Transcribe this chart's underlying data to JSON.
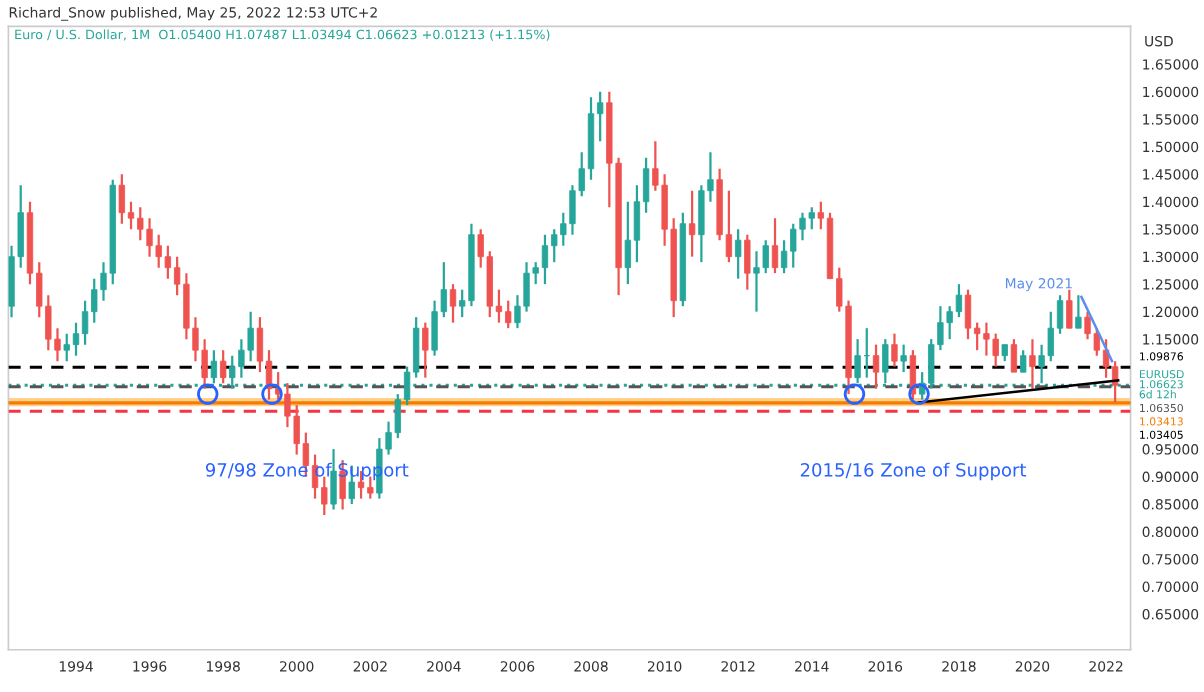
{
  "chart_data": {
    "type": "candlestick",
    "annotations": [
      "Richard_Snow published, May 25, 2022 12:53 UTC+2",
      "Euro / U.S. Dollar, 1M  O1.05400 H1.07487 L1.03494 C1.06623 +0.01213 (+1.15%)",
      "97/98 Zone of Support",
      "2015/16 Zone of Support",
      "1.03405",
      {
        "text": "May 2021",
        "x": "2021-05",
        "y": 1.227
      }
    ],
    "x": [
      "1992-04",
      "1992-07",
      "1992-10",
      "1993-01",
      "1993-04",
      "1993-07",
      "1993-10",
      "1994-01",
      "1994-04",
      "1994-07",
      "1994-10",
      "1995-01",
      "1995-04",
      "1995-07",
      "1995-10",
      "1996-01",
      "1996-04",
      "1996-07",
      "1996-10",
      "1997-01",
      "1997-04",
      "1997-07",
      "1997-10",
      "1998-01",
      "1998-04",
      "1998-07",
      "1998-10",
      "1999-01",
      "1999-04",
      "1999-07",
      "1999-10",
      "2000-01",
      "2000-04",
      "2000-07",
      "2000-10",
      "2001-01",
      "2001-04",
      "2001-07",
      "2001-10",
      "2002-01",
      "2002-04",
      "2002-07",
      "2002-10",
      "2003-01",
      "2003-04",
      "2003-07",
      "2003-10",
      "2004-01",
      "2004-04",
      "2004-07",
      "2004-10",
      "2005-01",
      "2005-04",
      "2005-07",
      "2005-10",
      "2006-01",
      "2006-04",
      "2006-07",
      "2006-10",
      "2007-01",
      "2007-04",
      "2007-07",
      "2007-10",
      "2008-01",
      "2008-04",
      "2008-07",
      "2008-10",
      "2009-01",
      "2009-04",
      "2009-07",
      "2009-10",
      "2010-01",
      "2010-04",
      "2010-07",
      "2010-10",
      "2011-01",
      "2011-04",
      "2011-07",
      "2011-10",
      "2012-01",
      "2012-04",
      "2012-07",
      "2012-10",
      "2013-01",
      "2013-04",
      "2013-07",
      "2013-10",
      "2014-01",
      "2014-04",
      "2014-07",
      "2014-10",
      "2015-01",
      "2015-04",
      "2015-07",
      "2015-10",
      "2016-01",
      "2016-04",
      "2016-07",
      "2016-10",
      "2017-01",
      "2017-04",
      "2017-07",
      "2017-10",
      "2018-01",
      "2018-04",
      "2018-07",
      "2018-10",
      "2019-01",
      "2019-04",
      "2019-07",
      "2019-10",
      "2020-01",
      "2020-04",
      "2020-07",
      "2020-10",
      "2021-01",
      "2021-04",
      "2021-07",
      "2021-10",
      "2022-01",
      "2022-04"
    ],
    "ohlc": [
      [
        1.21,
        1.32,
        1.19,
        1.3
      ],
      [
        1.3,
        1.43,
        1.28,
        1.38
      ],
      [
        1.38,
        1.4,
        1.25,
        1.27
      ],
      [
        1.27,
        1.29,
        1.19,
        1.21
      ],
      [
        1.21,
        1.23,
        1.13,
        1.15
      ],
      [
        1.15,
        1.17,
        1.11,
        1.13
      ],
      [
        1.13,
        1.16,
        1.11,
        1.14
      ],
      [
        1.14,
        1.18,
        1.12,
        1.16
      ],
      [
        1.16,
        1.22,
        1.14,
        1.2
      ],
      [
        1.2,
        1.26,
        1.18,
        1.24
      ],
      [
        1.24,
        1.29,
        1.22,
        1.27
      ],
      [
        1.27,
        1.44,
        1.25,
        1.43
      ],
      [
        1.43,
        1.45,
        1.36,
        1.38
      ],
      [
        1.38,
        1.4,
        1.35,
        1.37
      ],
      [
        1.37,
        1.39,
        1.33,
        1.35
      ],
      [
        1.35,
        1.37,
        1.3,
        1.32
      ],
      [
        1.32,
        1.34,
        1.28,
        1.3
      ],
      [
        1.3,
        1.32,
        1.26,
        1.28
      ],
      [
        1.28,
        1.3,
        1.23,
        1.25
      ],
      [
        1.25,
        1.27,
        1.15,
        1.17
      ],
      [
        1.17,
        1.19,
        1.11,
        1.13
      ],
      [
        1.13,
        1.15,
        1.06,
        1.08
      ],
      [
        1.08,
        1.13,
        1.07,
        1.11
      ],
      [
        1.11,
        1.13,
        1.07,
        1.08
      ],
      [
        1.08,
        1.12,
        1.06,
        1.1
      ],
      [
        1.1,
        1.15,
        1.08,
        1.13
      ],
      [
        1.13,
        1.2,
        1.11,
        1.17
      ],
      [
        1.17,
        1.19,
        1.09,
        1.11
      ],
      [
        1.11,
        1.13,
        1.04,
        1.06
      ],
      [
        1.06,
        1.09,
        1.04,
        1.05
      ],
      [
        1.05,
        1.07,
        0.99,
        1.01
      ],
      [
        1.01,
        1.03,
        0.94,
        0.96
      ],
      [
        0.96,
        0.98,
        0.9,
        0.92
      ],
      [
        0.92,
        0.94,
        0.86,
        0.88
      ],
      [
        0.88,
        0.9,
        0.83,
        0.85
      ],
      [
        0.85,
        0.95,
        0.84,
        0.91
      ],
      [
        0.91,
        0.93,
        0.84,
        0.86
      ],
      [
        0.86,
        0.92,
        0.85,
        0.89
      ],
      [
        0.89,
        0.91,
        0.86,
        0.88
      ],
      [
        0.88,
        0.9,
        0.86,
        0.87
      ],
      [
        0.87,
        0.97,
        0.86,
        0.95
      ],
      [
        0.95,
        1.0,
        0.94,
        0.98
      ],
      [
        0.98,
        1.05,
        0.97,
        1.04
      ],
      [
        1.04,
        1.1,
        1.03,
        1.09
      ],
      [
        1.09,
        1.19,
        1.08,
        1.17
      ],
      [
        1.17,
        1.18,
        1.08,
        1.13
      ],
      [
        1.13,
        1.22,
        1.12,
        1.2
      ],
      [
        1.2,
        1.29,
        1.19,
        1.24
      ],
      [
        1.24,
        1.25,
        1.18,
        1.21
      ],
      [
        1.21,
        1.24,
        1.19,
        1.22
      ],
      [
        1.22,
        1.36,
        1.21,
        1.34
      ],
      [
        1.34,
        1.35,
        1.28,
        1.3
      ],
      [
        1.3,
        1.31,
        1.19,
        1.21
      ],
      [
        1.21,
        1.24,
        1.18,
        1.2
      ],
      [
        1.2,
        1.22,
        1.17,
        1.18
      ],
      [
        1.18,
        1.23,
        1.17,
        1.21
      ],
      [
        1.21,
        1.29,
        1.2,
        1.27
      ],
      [
        1.27,
        1.29,
        1.25,
        1.28
      ],
      [
        1.28,
        1.34,
        1.25,
        1.32
      ],
      [
        1.32,
        1.35,
        1.29,
        1.34
      ],
      [
        1.34,
        1.38,
        1.32,
        1.36
      ],
      [
        1.36,
        1.43,
        1.34,
        1.42
      ],
      [
        1.42,
        1.49,
        1.41,
        1.46
      ],
      [
        1.46,
        1.59,
        1.44,
        1.56
      ],
      [
        1.56,
        1.6,
        1.51,
        1.58
      ],
      [
        1.58,
        1.6,
        1.39,
        1.47
      ],
      [
        1.47,
        1.48,
        1.23,
        1.28
      ],
      [
        1.28,
        1.4,
        1.25,
        1.33
      ],
      [
        1.33,
        1.43,
        1.29,
        1.4
      ],
      [
        1.4,
        1.48,
        1.38,
        1.46
      ],
      [
        1.46,
        1.51,
        1.42,
        1.43
      ],
      [
        1.43,
        1.45,
        1.32,
        1.35
      ],
      [
        1.35,
        1.37,
        1.19,
        1.22
      ],
      [
        1.22,
        1.38,
        1.21,
        1.36
      ],
      [
        1.36,
        1.42,
        1.3,
        1.34
      ],
      [
        1.34,
        1.43,
        1.29,
        1.42
      ],
      [
        1.42,
        1.49,
        1.4,
        1.44
      ],
      [
        1.44,
        1.46,
        1.33,
        1.34
      ],
      [
        1.34,
        1.42,
        1.29,
        1.3
      ],
      [
        1.3,
        1.35,
        1.26,
        1.33
      ],
      [
        1.33,
        1.34,
        1.24,
        1.27
      ],
      [
        1.27,
        1.31,
        1.2,
        1.28
      ],
      [
        1.28,
        1.33,
        1.27,
        1.32
      ],
      [
        1.32,
        1.37,
        1.27,
        1.28
      ],
      [
        1.28,
        1.33,
        1.27,
        1.31
      ],
      [
        1.31,
        1.36,
        1.28,
        1.35
      ],
      [
        1.35,
        1.38,
        1.33,
        1.37
      ],
      [
        1.37,
        1.39,
        1.35,
        1.38
      ],
      [
        1.38,
        1.4,
        1.35,
        1.37
      ],
      [
        1.37,
        1.38,
        1.26,
        1.26
      ],
      [
        1.26,
        1.28,
        1.2,
        1.21
      ],
      [
        1.21,
        1.22,
        1.05,
        1.08
      ],
      [
        1.08,
        1.15,
        1.07,
        1.12
      ],
      [
        1.12,
        1.17,
        1.08,
        1.12
      ],
      [
        1.12,
        1.14,
        1.06,
        1.09
      ],
      [
        1.09,
        1.15,
        1.07,
        1.14
      ],
      [
        1.14,
        1.16,
        1.1,
        1.11
      ],
      [
        1.11,
        1.14,
        1.09,
        1.12
      ],
      [
        1.12,
        1.13,
        1.04,
        1.05
      ],
      [
        1.05,
        1.09,
        1.04,
        1.07
      ],
      [
        1.07,
        1.15,
        1.06,
        1.14
      ],
      [
        1.14,
        1.21,
        1.13,
        1.18
      ],
      [
        1.18,
        1.21,
        1.15,
        1.2
      ],
      [
        1.2,
        1.25,
        1.19,
        1.23
      ],
      [
        1.23,
        1.24,
        1.15,
        1.17
      ],
      [
        1.17,
        1.18,
        1.13,
        1.16
      ],
      [
        1.16,
        1.18,
        1.12,
        1.15
      ],
      [
        1.15,
        1.16,
        1.1,
        1.12
      ],
      [
        1.12,
        1.14,
        1.11,
        1.14
      ],
      [
        1.14,
        1.15,
        1.09,
        1.09
      ],
      [
        1.09,
        1.13,
        1.09,
        1.12
      ],
      [
        1.12,
        1.15,
        1.06,
        1.1
      ],
      [
        1.1,
        1.14,
        1.07,
        1.12
      ],
      [
        1.12,
        1.2,
        1.11,
        1.17
      ],
      [
        1.17,
        1.23,
        1.16,
        1.22
      ],
      [
        1.22,
        1.24,
        1.17,
        1.17
      ],
      [
        1.17,
        1.23,
        1.17,
        1.19
      ],
      [
        1.19,
        1.2,
        1.15,
        1.16
      ],
      [
        1.16,
        1.17,
        1.12,
        1.13
      ],
      [
        1.13,
        1.15,
        1.08,
        1.1
      ],
      [
        1.1,
        1.11,
        1.035,
        1.066
      ]
    ],
    "colors": [
      "#26a69a",
      "#26a69a",
      "#ef5350",
      "#ef5350",
      "#ef5350",
      "#ef5350",
      "#26a69a",
      "#26a69a",
      "#26a69a",
      "#26a69a",
      "#26a69a",
      "#26a69a",
      "#ef5350",
      "#ef5350",
      "#ef5350",
      "#ef5350",
      "#ef5350",
      "#ef5350",
      "#ef5350",
      "#ef5350",
      "#ef5350",
      "#ef5350",
      "#26a69a",
      "#ef5350",
      "#26a69a",
      "#26a69a",
      "#26a69a",
      "#ef5350",
      "#ef5350",
      "#ef5350",
      "#ef5350",
      "#ef5350",
      "#ef5350",
      "#ef5350",
      "#ef5350",
      "#26a69a",
      "#ef5350",
      "#26a69a",
      "#ef5350",
      "#ef5350",
      "#26a69a",
      "#26a69a",
      "#26a69a",
      "#26a69a",
      "#26a69a",
      "#ef5350",
      "#26a69a",
      "#26a69a",
      "#ef5350",
      "#26a69a",
      "#26a69a",
      "#ef5350",
      "#ef5350",
      "#ef5350",
      "#ef5350",
      "#26a69a",
      "#26a69a",
      "#26a69a",
      "#26a69a",
      "#26a69a",
      "#26a69a",
      "#26a69a",
      "#26a69a",
      "#26a69a",
      "#26a69a",
      "#ef5350",
      "#ef5350",
      "#26a69a",
      "#26a69a",
      "#26a69a",
      "#ef5350",
      "#ef5350",
      "#ef5350",
      "#26a69a",
      "#ef5350",
      "#26a69a",
      "#26a69a",
      "#ef5350",
      "#ef5350",
      "#26a69a",
      "#ef5350",
      "#26a69a",
      "#26a69a",
      "#ef5350",
      "#26a69a",
      "#26a69a",
      "#26a69a",
      "#26a69a",
      "#ef5350",
      "#ef5350",
      "#ef5350",
      "#ef5350",
      "#26a69a",
      "#26a69a",
      "#ef5350",
      "#26a69a",
      "#ef5350",
      "#26a69a",
      "#ef5350",
      "#26a69a",
      "#26a69a",
      "#26a69a",
      "#26a69a",
      "#26a69a",
      "#ef5350",
      "#ef5350",
      "#ef5350",
      "#ef5350",
      "#26a69a",
      "#ef5350",
      "#26a69a",
      "#ef5350",
      "#26a69a",
      "#26a69a",
      "#26a69a",
      "#ef5350",
      "#26a69a",
      "#ef5350",
      "#ef5350",
      "#ef5350",
      "#ef5350"
    ],
    "series": [
      {
        "type": "line",
        "color": "#000000",
        "x": [
          "2016-12",
          "2022-05"
        ],
        "values": [
          1.035,
          1.075
        ]
      },
      {
        "type": "line",
        "color": "#5b8def",
        "x": [
          "2021-05",
          "2022-03"
        ],
        "values": [
          1.227,
          1.11
        ]
      },
      {
        "type": "scatter",
        "color": "#2962ff",
        "marker": "circle",
        "x": [
          "1997-08",
          "1999-05",
          "2015-03",
          "2016-12"
        ],
        "values": [
          1.05,
          1.05,
          1.05,
          1.05
        ]
      }
    ],
    "ref_lines": [
      {
        "axis": "y",
        "value": 1.09876,
        "label": "1.09876",
        "color": "#000000",
        "line_style": "dashed"
      },
      {
        "axis": "y",
        "value": 1.06623,
        "label": "EURUSD 1.06623 6d 12h",
        "color": "#26a69a",
        "line_style": "dotted"
      },
      {
        "axis": "y",
        "value": 1.0635,
        "label": "1.06350",
        "color": "#555555",
        "line_style": "dashed"
      },
      {
        "axis": "y",
        "value": 1.03413,
        "label": "1.03413",
        "color": "#f57c00",
        "line_style": "solid"
      },
      {
        "axis": "y",
        "value": 1.019,
        "label": null,
        "color": "#f23645",
        "line_style": "dashed"
      }
    ],
    "bands": [
      {
        "axis": "y",
        "from": 1.028,
        "to": 1.043,
        "label": null,
        "color": "#ffcc80"
      }
    ],
    "ylabel": "USD",
    "ylim": [
      0.585,
      1.719
    ],
    "yticks": [
      {
        "value": 0.65,
        "label": "0.65000"
      },
      {
        "value": 0.7,
        "label": "0.70000"
      },
      {
        "value": 0.75,
        "label": "0.75000"
      },
      {
        "value": 0.8,
        "label": "0.80000"
      },
      {
        "value": 0.85,
        "label": "0.85000"
      },
      {
        "value": 0.9,
        "label": "0.90000"
      },
      {
        "value": 0.95,
        "label": "0.95000"
      },
      {
        "value": 1.15,
        "label": "1.15000"
      },
      {
        "value": 1.2,
        "label": "1.20000"
      },
      {
        "value": 1.25,
        "label": "1.25000"
      },
      {
        "value": 1.3,
        "label": "1.30000"
      },
      {
        "value": 1.35,
        "label": "1.35000"
      },
      {
        "value": 1.4,
        "label": "1.40000"
      },
      {
        "value": 1.45,
        "label": "1.45000"
      },
      {
        "value": 1.5,
        "label": "1.50000"
      },
      {
        "value": 1.55,
        "label": "1.55000"
      },
      {
        "value": 1.6,
        "label": "1.60000"
      },
      {
        "value": 1.65,
        "label": "1.65000"
      }
    ],
    "xlim": [
      "1992-03",
      "2022-09"
    ],
    "xticks": [
      {
        "value": "1994",
        "label": "1994"
      },
      {
        "value": "1996",
        "label": "1996"
      },
      {
        "value": "1998",
        "label": "1998"
      },
      {
        "value": "2000",
        "label": "2000"
      },
      {
        "value": "2002",
        "label": "2002"
      },
      {
        "value": "2004",
        "label": "2004"
      },
      {
        "value": "2006",
        "label": "2006"
      },
      {
        "value": "2008",
        "label": "2008"
      },
      {
        "value": "2010",
        "label": "2010"
      },
      {
        "value": "2012",
        "label": "2012"
      },
      {
        "value": "2014",
        "label": "2014"
      },
      {
        "value": "2016",
        "label": "2016"
      },
      {
        "value": "2018",
        "label": "2018"
      },
      {
        "value": "2020",
        "label": "2020"
      },
      {
        "value": "2022",
        "label": "2022"
      }
    ],
    "grid": false,
    "legend": false
  }
}
